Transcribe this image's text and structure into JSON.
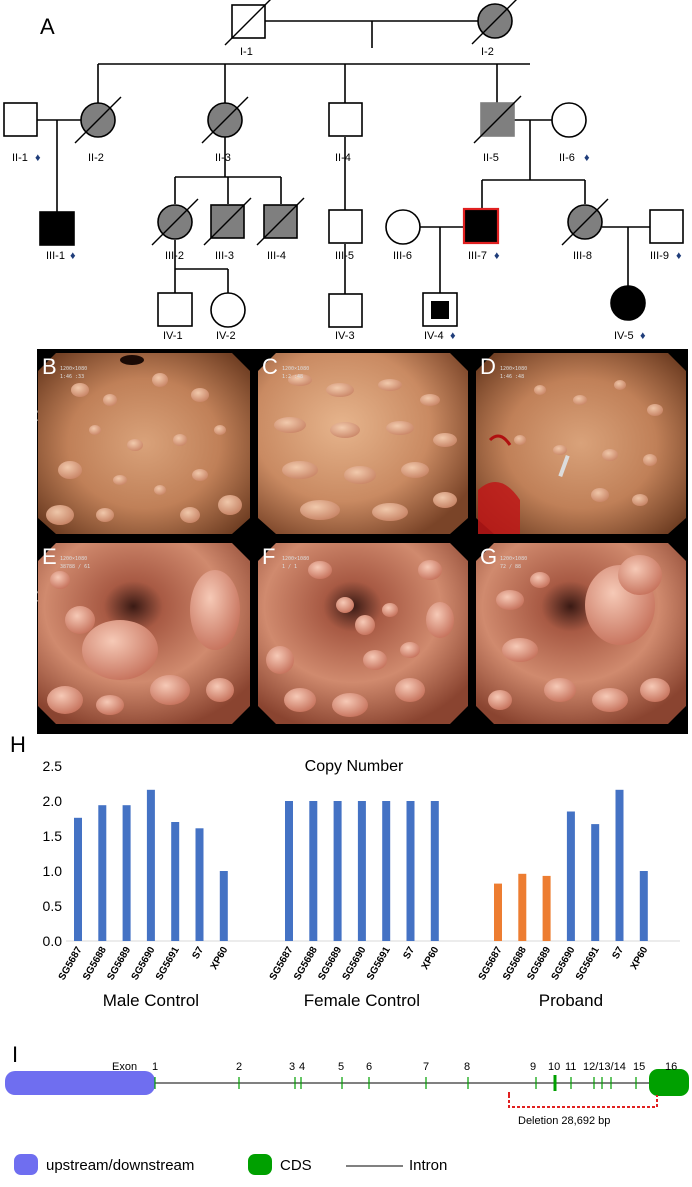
{
  "pedigree": {
    "panel": "A",
    "individuals": {
      "I1": "I-1",
      "I2": "I-2",
      "II1": "II-1",
      "II2": "II-2",
      "II3": "II-3",
      "II4": "II-4",
      "II5": "II-5",
      "II6": "II-6",
      "III1": "III-1",
      "III2": "III-2",
      "III3": "III-3",
      "III4": "III-4",
      "III5": "III-5",
      "III6": "III-6",
      "III7": "III-7",
      "III8": "III-8",
      "III9": "III-9",
      "IV1": "IV-1",
      "IV2": "IV-2",
      "IV3": "IV-3",
      "IV4": "IV-4",
      "IV5": "IV-5"
    },
    "sequenced_marker": "♦",
    "colors": {
      "affected": "#000000",
      "gray": "#7f7f7f",
      "proband_outline": "#e02020"
    }
  },
  "endoscopy": {
    "row1_label": "Gastroscopy",
    "row2_label": "Colonoscopy",
    "panels": [
      "B",
      "C",
      "D",
      "E",
      "F",
      "G"
    ]
  },
  "chart_data": {
    "panel": "H",
    "type": "bar",
    "title": "Copy Number",
    "ylim": [
      0,
      2.5
    ],
    "yticks": [
      "0.0",
      "0.5",
      "1.0",
      "1.5",
      "2.0",
      "2.5"
    ],
    "groups": [
      {
        "name": "Male Control",
        "categories": [
          "SG5687",
          "SG5688",
          "SG5689",
          "SG5690",
          "SG5691",
          "S7",
          "XP60"
        ],
        "values": [
          1.76,
          1.94,
          1.94,
          2.16,
          1.7,
          1.61,
          1.0
        ],
        "colors": [
          "#4472c4",
          "#4472c4",
          "#4472c4",
          "#4472c4",
          "#4472c4",
          "#4472c4",
          "#4472c4"
        ]
      },
      {
        "name": "Female Control",
        "categories": [
          "SG5687",
          "SG5688",
          "SG5689",
          "SG5690",
          "SG5691",
          "S7",
          "XP60"
        ],
        "values": [
          2.0,
          2.0,
          2.0,
          2.0,
          2.0,
          2.0,
          2.0
        ],
        "colors": [
          "#4472c4",
          "#4472c4",
          "#4472c4",
          "#4472c4",
          "#4472c4",
          "#4472c4",
          "#4472c4"
        ]
      },
      {
        "name": "Proband",
        "categories": [
          "SG5687",
          "SG5688",
          "SG5689",
          "SG5690",
          "SG5691",
          "S7",
          "XP60"
        ],
        "values": [
          0.82,
          0.96,
          0.93,
          1.85,
          1.67,
          2.16,
          1.0
        ],
        "colors": [
          "#ed7d31",
          "#ed7d31",
          "#ed7d31",
          "#4472c4",
          "#4472c4",
          "#4472c4",
          "#4472c4"
        ]
      }
    ]
  },
  "gene": {
    "panel": "I",
    "exon_label": "Exon",
    "exons": [
      "1",
      "2",
      "3",
      "4",
      "5",
      "6",
      "7",
      "8",
      "9",
      "10",
      "11",
      "12",
      "13",
      "14",
      "15",
      "16"
    ],
    "exon_labels": [
      "1",
      "2",
      "3",
      "4",
      "5",
      "6",
      "7",
      "8",
      "9",
      "10",
      "11",
      "12/13/14",
      "15",
      "16"
    ],
    "deletion_label": "Deletion 28,692 bp",
    "colors": {
      "upstream": "#6f6ef0",
      "cds": "#00a000",
      "deletion": "#e02020"
    }
  },
  "legend": {
    "items": [
      {
        "label": "upstream/downstream",
        "color": "#6f6ef0"
      },
      {
        "label": "CDS",
        "color": "#00a000"
      },
      {
        "label": "Intron"
      }
    ]
  }
}
